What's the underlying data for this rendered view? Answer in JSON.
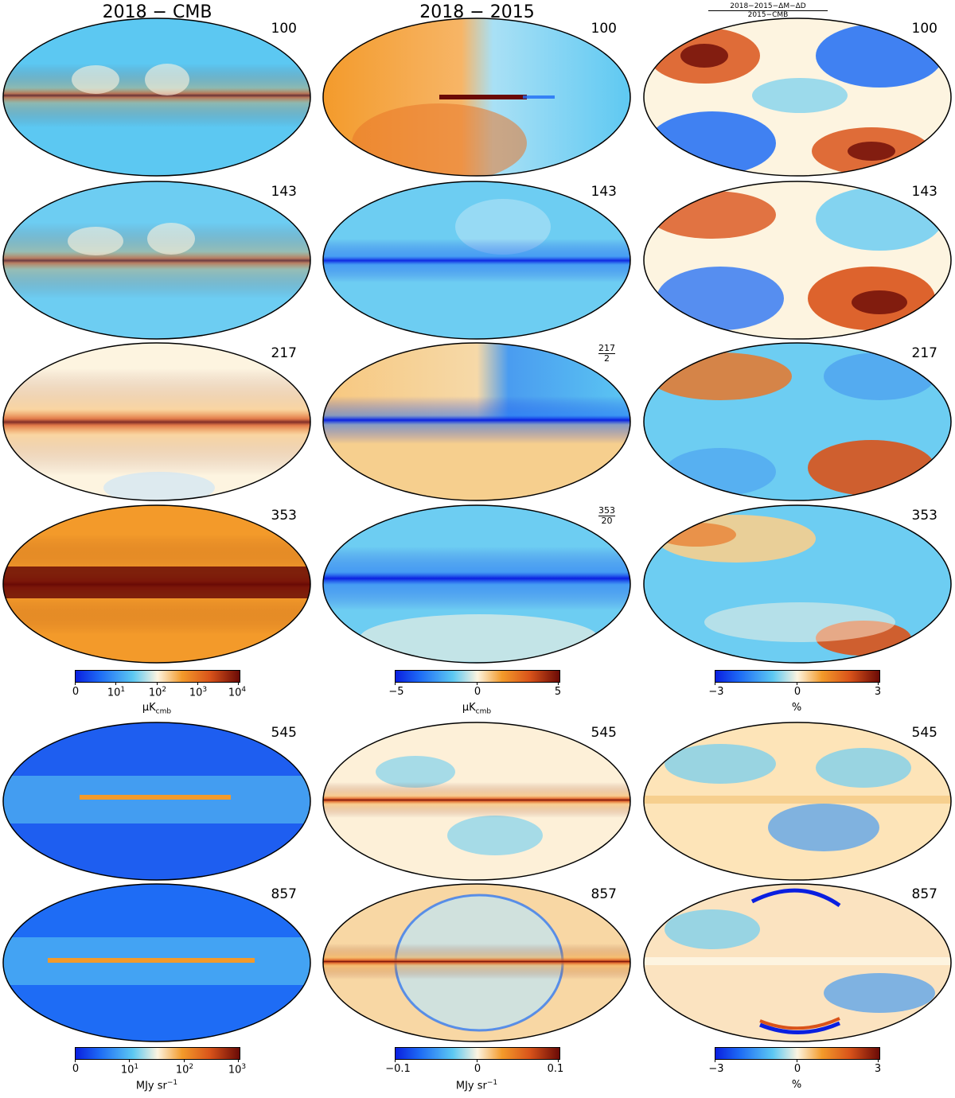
{
  "columns": {
    "col1_title": "2018 − CMB",
    "col2_title": "2018 − 2015",
    "col3_title_num": "2018−2015−ΔM−ΔD",
    "col3_title_den": "2015−CMB"
  },
  "freq_labels": {
    "f100": "100",
    "f143": "143",
    "f217": "217",
    "f353": "353",
    "f545": "545",
    "f857": "857",
    "f217_num": "217",
    "f217_den": "2",
    "f353_num": "353",
    "f353_den": "20"
  },
  "colorbars": {
    "cmb_top": {
      "ticks": [
        "0",
        "10",
        "10",
        "10",
        "10"
      ],
      "exps": [
        "",
        "1",
        "2",
        "3",
        "4"
      ],
      "unit": "μK",
      "unit_sub": "cmb"
    },
    "diff_top": {
      "ticks": [
        "−5",
        "0",
        "5"
      ],
      "unit": "μK",
      "unit_sub": "cmb"
    },
    "pct_top": {
      "ticks": [
        "−3",
        "0",
        "3"
      ],
      "unit": "%"
    },
    "cmb_bot": {
      "ticks": [
        "0",
        "10",
        "10",
        "10"
      ],
      "exps": [
        "",
        "1",
        "2",
        "3"
      ],
      "unit": "MJy sr",
      "unit_sup": "−1"
    },
    "diff_bot": {
      "ticks": [
        "−0.1",
        "0",
        "0.1"
      ],
      "unit": "MJy sr",
      "unit_sup": "−1"
    },
    "pct_bot": {
      "ticks": [
        "−3",
        "0",
        "3"
      ],
      "unit": "%"
    }
  },
  "colors": {
    "deep_blue": "#0a1fe0",
    "blue": "#1e6cf5",
    "light_blue": "#5cc8f2",
    "pale": "#fdf4e0",
    "orange": "#f39a2a",
    "dark_orange": "#d9531a",
    "maroon": "#6a0a06"
  }
}
